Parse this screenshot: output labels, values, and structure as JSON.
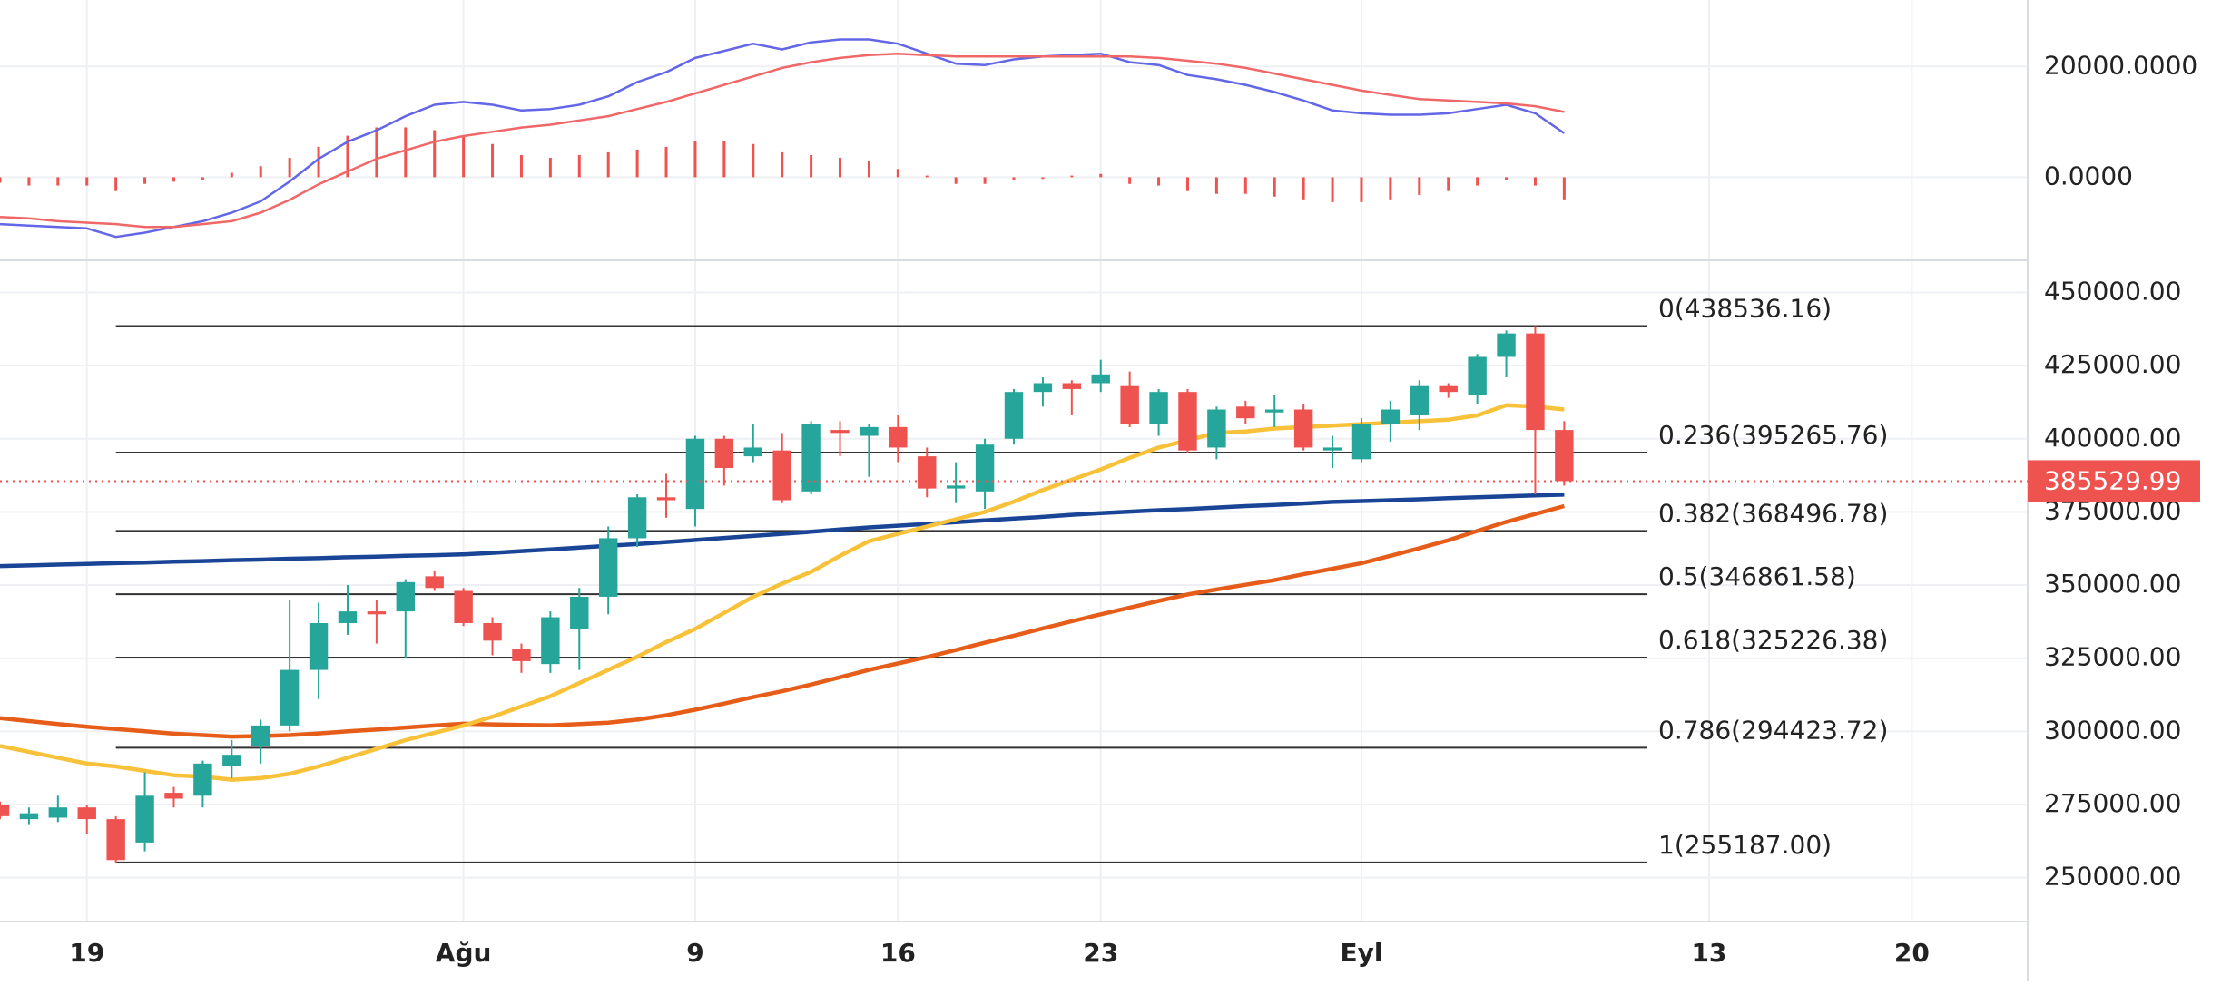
{
  "chart_data": [
    {
      "type": "candlestick",
      "xlim": [
        0,
        70
      ],
      "xticks": [
        {
          "value": 3,
          "label": "19"
        },
        {
          "value": 16,
          "label": "Ağu"
        },
        {
          "value": 24,
          "label": "9"
        },
        {
          "value": 31,
          "label": "16"
        },
        {
          "value": 38,
          "label": "23"
        },
        {
          "value": 47,
          "label": "Eyl"
        },
        {
          "value": 59,
          "label": "13"
        },
        {
          "value": 66,
          "label": "20"
        }
      ],
      "ylim": [
        235000,
        461000
      ],
      "yticks": [
        {
          "value": 250000,
          "label": "250000.00"
        },
        {
          "value": 275000,
          "label": "275000.00"
        },
        {
          "value": 300000,
          "label": "300000.00"
        },
        {
          "value": 325000,
          "label": "325000.00"
        },
        {
          "value": 350000,
          "label": "350000.00"
        },
        {
          "value": 375000,
          "label": "375000.00"
        },
        {
          "value": 400000,
          "label": "400000.00"
        },
        {
          "value": 425000,
          "label": "425000.00"
        },
        {
          "value": 450000,
          "label": "450000.00"
        }
      ],
      "grid": true,
      "up_color": "#26a69a",
      "down_color": "#ef5350",
      "ohlc": {
        "open": [
          275000,
          270000,
          270500,
          274000,
          270000,
          262000,
          279000,
          278000,
          288000,
          295000,
          302000,
          321000,
          337000,
          341000,
          341000,
          353000,
          348000,
          337000,
          328000,
          323000,
          335000,
          346000,
          366000,
          380000,
          376000,
          400000,
          394000,
          396000,
          382000,
          403000,
          401000,
          404000,
          394000,
          383000,
          382000,
          400000,
          416000,
          419000,
          419000,
          418000,
          405000,
          416000,
          397000,
          411000,
          409000,
          410000,
          396000,
          393000,
          405000,
          408000,
          418000,
          415000,
          428000,
          436000,
          403000
        ],
        "high": [
          276000,
          274000,
          278000,
          275000,
          271000,
          286000,
          281000,
          290000,
          297000,
          304000,
          345000,
          344000,
          350000,
          345000,
          352000,
          355000,
          349000,
          339000,
          330000,
          341000,
          349000,
          370000,
          381000,
          388000,
          401000,
          401000,
          405000,
          402000,
          406000,
          406000,
          405000,
          408000,
          397000,
          392000,
          400000,
          417000,
          421000,
          420000,
          427000,
          423000,
          417000,
          417000,
          411000,
          413000,
          415000,
          412000,
          401000,
          407000,
          413000,
          420000,
          419000,
          429000,
          437000,
          438536.16,
          406000
        ],
        "low": [
          270000,
          268000,
          269000,
          265000,
          255187,
          259000,
          274000,
          274000,
          284000,
          289000,
          300000,
          311000,
          333000,
          330000,
          325000,
          348000,
          336000,
          326000,
          320000,
          320000,
          321000,
          340000,
          363000,
          373000,
          370000,
          384000,
          392000,
          378000,
          381000,
          394000,
          387000,
          392000,
          380000,
          378000,
          376000,
          398000,
          411000,
          408000,
          416000,
          404000,
          401000,
          395000,
          393000,
          405000,
          404000,
          396000,
          390000,
          392000,
          399000,
          403000,
          414000,
          412000,
          421000,
          381000,
          384000
        ],
        "close": [
          271000,
          272000,
          274000,
          270000,
          256000,
          278000,
          277000,
          289000,
          292000,
          302000,
          321000,
          337000,
          341000,
          340000,
          351000,
          349000,
          337000,
          331000,
          324000,
          339000,
          346000,
          366000,
          380000,
          379000,
          400000,
          390000,
          397000,
          379000,
          405000,
          402000,
          404000,
          397000,
          383000,
          384000,
          398000,
          416000,
          419000,
          417000,
          422000,
          405000,
          416000,
          396000,
          410000,
          407000,
          410000,
          397000,
          397000,
          405000,
          410000,
          418000,
          416000,
          428000,
          436000,
          403000,
          385529.99
        ]
      },
      "series": [
        {
          "color": "#1a4597",
          "values": [
            356500,
            356700,
            357000,
            357200,
            357500,
            357700,
            358000,
            358200,
            358500,
            358700,
            359000,
            359200,
            359500,
            359700,
            360000,
            360200,
            360500,
            361000,
            361600,
            362200,
            362800,
            363400,
            364000,
            364700,
            365400,
            366100,
            366800,
            367500,
            368200,
            369000,
            369700,
            370300,
            370900,
            371500,
            372100,
            372700,
            373300,
            374000,
            374600,
            375100,
            375600,
            376000,
            376500,
            377000,
            377400,
            377900,
            378400,
            378700,
            379000,
            379300,
            379700,
            380000,
            380300,
            380600,
            380900
          ]
        },
        {
          "color": "#e65c19",
          "values": [
            304500,
            303500,
            302500,
            301600,
            300800,
            300000,
            299200,
            298700,
            298200,
            298400,
            298700,
            299300,
            300000,
            300600,
            301300,
            302000,
            302600,
            302400,
            302200,
            302100,
            302500,
            303000,
            304000,
            305500,
            307400,
            309500,
            311700,
            313700,
            316000,
            318500,
            321000,
            323200,
            325400,
            327800,
            330300,
            332700,
            335200,
            337600,
            340000,
            342300,
            344600,
            346800,
            348500,
            350100,
            351700,
            353700,
            355600,
            357500,
            360000,
            362600,
            365300,
            368500,
            371600,
            374300,
            377000
          ]
        },
        {
          "color": "#f8c13a",
          "values": [
            295000,
            293000,
            291000,
            289000,
            288000,
            286500,
            285000,
            284500,
            283500,
            284000,
            285500,
            288000,
            291000,
            294000,
            297000,
            299500,
            302000,
            305000,
            308500,
            312000,
            316500,
            321000,
            325500,
            330500,
            335000,
            340500,
            346000,
            350500,
            354500,
            360000,
            365000,
            367500,
            370000,
            372500,
            375000,
            378500,
            382500,
            386000,
            389500,
            393500,
            397000,
            399500,
            402000,
            402500,
            403500,
            404000,
            404500,
            405000,
            405500,
            406000,
            406500,
            408000,
            411500,
            411000,
            410000
          ]
        }
      ],
      "fib_start": 4,
      "fib_levels": [
        {
          "value": 438536.16,
          "label": "0(438536.16)"
        },
        {
          "value": 395265.76,
          "label": "0.236(395265.76)"
        },
        {
          "value": 368496.78,
          "label": "0.382(368496.78)"
        },
        {
          "value": 346861.58,
          "label": "0.5(346861.58)"
        },
        {
          "value": 325226.38,
          "label": "0.618(325226.38)"
        },
        {
          "value": 294423.72,
          "label": "0.786(294423.72)"
        },
        {
          "value": 255187.0,
          "label": "1(255187.00)"
        }
      ],
      "last_price": {
        "value": 385529.99,
        "label": "385529.99",
        "color": "#ef5350"
      }
    },
    {
      "type": "line",
      "xlim": [
        0,
        70
      ],
      "ylim": [
        -15000,
        32000
      ],
      "yticks": [
        {
          "value": 0,
          "label": "0.0000"
        },
        {
          "value": 20000,
          "label": "20000.0000"
        }
      ],
      "grid": true,
      "series": [
        {
          "color": "#6366e6",
          "values": [
            -8460,
            -8720,
            -8970,
            -9230,
            -10770,
            -10000,
            -8970,
            -7950,
            -6410,
            -4360,
            -770,
            3330,
            6410,
            8460,
            11030,
            13080,
            13590,
            13080,
            12050,
            12310,
            13080,
            14610,
            17180,
            18970,
            21540,
            22820,
            24100,
            23080,
            24360,
            24870,
            24870,
            24100,
            22310,
            20510,
            20260,
            21280,
            21790,
            22050,
            22310,
            20770,
            20260,
            18460,
            17690,
            16670,
            15380,
            13850,
            12050,
            11540,
            11280,
            11280,
            11540,
            12310,
            13080,
            11540,
            7950
          ]
        },
        {
          "color": "#f06767",
          "values": [
            -7180,
            -7440,
            -7950,
            -8210,
            -8460,
            -8970,
            -8970,
            -8460,
            -7950,
            -6410,
            -4100,
            -1280,
            1030,
            3330,
            4870,
            6410,
            7440,
            8210,
            8970,
            9490,
            10260,
            11030,
            12310,
            13590,
            15130,
            16670,
            18200,
            19740,
            20770,
            21540,
            22050,
            22310,
            22050,
            21790,
            21790,
            21790,
            21790,
            21790,
            21790,
            21790,
            21540,
            21030,
            20510,
            19740,
            18720,
            17690,
            16670,
            15640,
            14870,
            14100,
            13850,
            13590,
            13330,
            12820,
            11790
          ]
        }
      ],
      "histogram": {
        "color": "#ef5350",
        "values": [
          -1000,
          -1500,
          -1500,
          -1500,
          -2500,
          -1200,
          -800,
          -500,
          800,
          2000,
          3500,
          5500,
          7500,
          9000,
          9000,
          8500,
          7500,
          6000,
          4000,
          3500,
          4000,
          4500,
          5000,
          5500,
          6500,
          6500,
          6000,
          4500,
          4000,
          3500,
          3000,
          1500,
          300,
          -1200,
          -1200,
          -500,
          -300,
          300,
          600,
          -1200,
          -1500,
          -2500,
          -3000,
          -3000,
          -3500,
          -4000,
          -4500,
          -4500,
          -4000,
          -3200,
          -2500,
          -1500,
          -500,
          -1500,
          -4000
        ]
      }
    }
  ]
}
